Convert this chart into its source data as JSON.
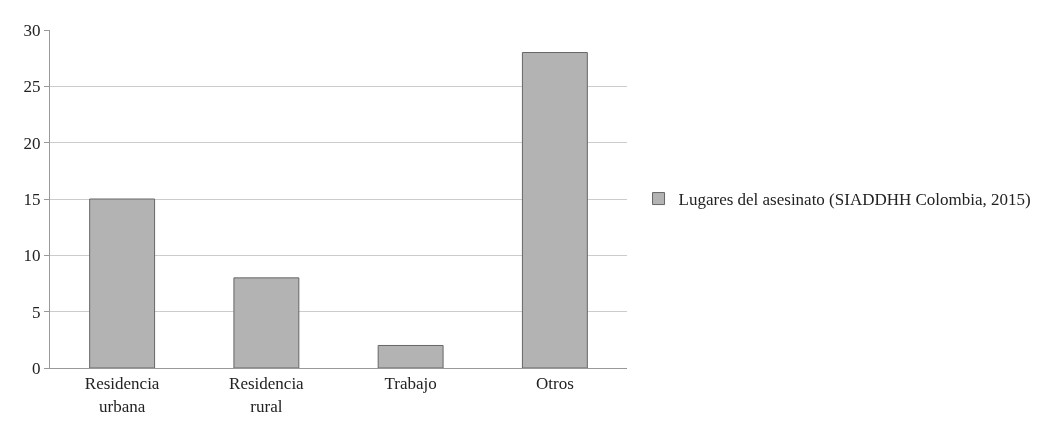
{
  "chart_data": {
    "type": "bar",
    "categories": [
      "Residencia urbana",
      "Residencia rural",
      "Trabajo",
      "Otros"
    ],
    "series": [
      {
        "name": "Lugares del asesinato (SIADDHH Colombia, 2015)",
        "color": "#b3b3b3",
        "values": [
          15,
          8,
          2,
          28
        ]
      }
    ],
    "ylim": [
      0,
      30
    ],
    "yticks": [
      0,
      5,
      10,
      15,
      20,
      25,
      30
    ],
    "grid": "y",
    "legend": "right"
  }
}
